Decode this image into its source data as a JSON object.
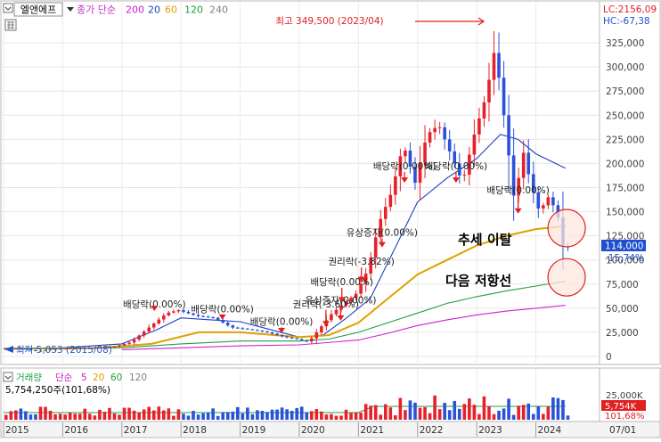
{
  "toolbar": {
    "stock_name": "엘앤에프",
    "ma_label": "종가 단순",
    "ma_periods": [
      "200",
      "20",
      "60",
      "120",
      "240"
    ],
    "ma_colors": [
      "#d020d0",
      "#2040c0",
      "#e0a000",
      "#20a040",
      "#808080"
    ]
  },
  "corner_labels": {
    "lc": "LC:2156,09",
    "hc": "HC:-67,38"
  },
  "annotations": {
    "peak": "최고 349,500 (2023/04)",
    "low": "최저 5,053 (2015/08)",
    "trend_break": "추세 이탈",
    "next_support": "다음 저항선",
    "div_labels": [
      {
        "text": "배당락(0.00%)",
        "cx": 2017.55,
        "ty": 51000,
        "ay": 47000
      },
      {
        "text": "배당락(0.00%)",
        "cx": 2018.7,
        "ty": 45500,
        "ay": 38000
      },
      {
        "text": "배당락(0.00%)",
        "cx": 2019.7,
        "ty": 33000,
        "ay": 24000
      },
      {
        "text": "권리락(-3.60%)",
        "cx": 2020.45,
        "ty": 51000,
        "ay": 31000
      },
      {
        "text": "유상증자(0.00%)",
        "cx": 2020.7,
        "ty": 55000,
        "ay": 37000
      },
      {
        "text": "배당락(0.00%)",
        "cx": 2020.72,
        "ty": 74000,
        "ay": 56000
      },
      {
        "text": "권리락(-3.82%)",
        "cx": 2021.05,
        "ty": 95000,
        "ay": 77000
      },
      {
        "text": "유상증자(0.00%)",
        "cx": 2021.4,
        "ty": 125000,
        "ay": 113000
      },
      {
        "text": "배당락(0.00%)",
        "cx": 2021.78,
        "ty": 194000,
        "ay": 180000
      },
      {
        "text": "배당락(0.00%)",
        "cx": 2022.65,
        "ty": 194000,
        "ay": 180000
      },
      {
        "text": "배당락(0.00%)",
        "cx": 2023.7,
        "ty": 169000,
        "ay": 148000
      }
    ]
  },
  "right_axis": {
    "ticks": [
      "325,000",
      "300,000",
      "275,000",
      "250,000",
      "225,000",
      "200,000",
      "175,000",
      "150,000",
      "125,000",
      "100,000",
      "75,000",
      "50,000",
      "25,000",
      "0"
    ],
    "current_price": "114,000",
    "change_pct": "-15,74%"
  },
  "volume_panel": {
    "title_parts": [
      "거래량",
      "단순",
      "5",
      "20",
      "60",
      "120"
    ],
    "current": "5,754,250주(101,68%)",
    "axis_tick": "25,000K",
    "badge_value": "5,754K",
    "badge_pct": "101,68%"
  },
  "x_axis": {
    "labels": [
      "2015",
      "2016",
      "2017",
      "2018",
      "2019",
      "2020",
      "2021",
      "2022",
      "2023",
      "2024"
    ],
    "end_label": "07/01"
  },
  "chart_data": {
    "type": "candlestick",
    "title": "엘앤에프",
    "ylim": [
      0,
      350000
    ],
    "x_range": [
      2015.0,
      2024.7
    ],
    "price_path": [
      [
        2015.0,
        8000
      ],
      [
        2015.3,
        8500
      ],
      [
        2015.6,
        5500
      ],
      [
        2015.8,
        7000
      ],
      [
        2016.0,
        8000
      ],
      [
        2016.5,
        9000
      ],
      [
        2016.9,
        10000
      ],
      [
        2017.2,
        15000
      ],
      [
        2017.5,
        30000
      ],
      [
        2017.8,
        45000
      ],
      [
        2018.0,
        48000
      ],
      [
        2018.3,
        42000
      ],
      [
        2018.6,
        40000
      ],
      [
        2018.9,
        30000
      ],
      [
        2019.2,
        28000
      ],
      [
        2019.5,
        25000
      ],
      [
        2019.8,
        20000
      ],
      [
        2020.0,
        18000
      ],
      [
        2020.2,
        15000
      ],
      [
        2020.4,
        30000
      ],
      [
        2020.6,
        45000
      ],
      [
        2020.8,
        55000
      ],
      [
        2021.0,
        65000
      ],
      [
        2021.2,
        90000
      ],
      [
        2021.4,
        140000
      ],
      [
        2021.6,
        170000
      ],
      [
        2021.8,
        220000
      ],
      [
        2022.0,
        180000
      ],
      [
        2022.2,
        230000
      ],
      [
        2022.4,
        240000
      ],
      [
        2022.6,
        210000
      ],
      [
        2022.8,
        180000
      ],
      [
        2023.0,
        230000
      ],
      [
        2023.2,
        270000
      ],
      [
        2023.35,
        320000
      ],
      [
        2023.5,
        250000
      ],
      [
        2023.6,
        200000
      ],
      [
        2023.7,
        150000
      ],
      [
        2023.8,
        220000
      ],
      [
        2023.95,
        180000
      ],
      [
        2024.1,
        150000
      ],
      [
        2024.25,
        165000
      ],
      [
        2024.4,
        150000
      ],
      [
        2024.5,
        114000
      ]
    ],
    "ma_series": [
      {
        "name": "20",
        "color": "#2040c0",
        "points": [
          [
            2015.0,
            8000
          ],
          [
            2016.0,
            9000
          ],
          [
            2017.0,
            13000
          ],
          [
            2017.6,
            28000
          ],
          [
            2018.0,
            40000
          ],
          [
            2018.5,
            38000
          ],
          [
            2019.0,
            36000
          ],
          [
            2019.5,
            28000
          ],
          [
            2020.0,
            20000
          ],
          [
            2020.4,
            22000
          ],
          [
            2020.8,
            40000
          ],
          [
            2021.2,
            60000
          ],
          [
            2021.6,
            110000
          ],
          [
            2022.0,
            160000
          ],
          [
            2022.5,
            185000
          ],
          [
            2023.0,
            205000
          ],
          [
            2023.4,
            230000
          ],
          [
            2023.7,
            225000
          ],
          [
            2024.0,
            210000
          ],
          [
            2024.5,
            195000
          ]
        ]
      },
      {
        "name": "60",
        "color": "#e0a000",
        "points": [
          [
            2015.0,
            8000
          ],
          [
            2016.5,
            8500
          ],
          [
            2017.5,
            13000
          ],
          [
            2018.3,
            25000
          ],
          [
            2019.0,
            25000
          ],
          [
            2020.0,
            20000
          ],
          [
            2020.5,
            22000
          ],
          [
            2021.0,
            35000
          ],
          [
            2021.5,
            60000
          ],
          [
            2022.0,
            85000
          ],
          [
            2022.5,
            100000
          ],
          [
            2023.0,
            115000
          ],
          [
            2023.5,
            125000
          ],
          [
            2024.0,
            132000
          ],
          [
            2024.5,
            135000
          ]
        ]
      },
      {
        "name": "120",
        "color": "#20a040",
        "points": [
          [
            2015.0,
            8000
          ],
          [
            2017.0,
            9000
          ],
          [
            2018.0,
            13000
          ],
          [
            2019.0,
            16000
          ],
          [
            2020.0,
            16000
          ],
          [
            2020.5,
            18000
          ],
          [
            2021.0,
            25000
          ],
          [
            2021.5,
            35000
          ],
          [
            2022.0,
            45000
          ],
          [
            2022.5,
            55000
          ],
          [
            2023.0,
            62000
          ],
          [
            2023.5,
            68000
          ],
          [
            2024.0,
            73000
          ],
          [
            2024.5,
            78000
          ]
        ]
      },
      {
        "name": "200",
        "color": "#d020d0",
        "points": [
          [
            2017.0,
            7000
          ],
          [
            2018.0,
            9000
          ],
          [
            2019.0,
            11000
          ],
          [
            2020.0,
            12000
          ],
          [
            2021.0,
            17000
          ],
          [
            2021.5,
            24000
          ],
          [
            2022.0,
            32000
          ],
          [
            2022.5,
            38000
          ],
          [
            2023.0,
            43000
          ],
          [
            2023.5,
            47000
          ],
          [
            2024.0,
            50000
          ],
          [
            2024.5,
            53000
          ]
        ]
      }
    ],
    "peak": {
      "x": 2023.28,
      "y": 349500
    },
    "low": {
      "x": 2015.5,
      "y": 5053
    },
    "circles": [
      {
        "x": 2024.4,
        "y": 133000
      },
      {
        "x": 2024.4,
        "y": 82000
      }
    ]
  }
}
